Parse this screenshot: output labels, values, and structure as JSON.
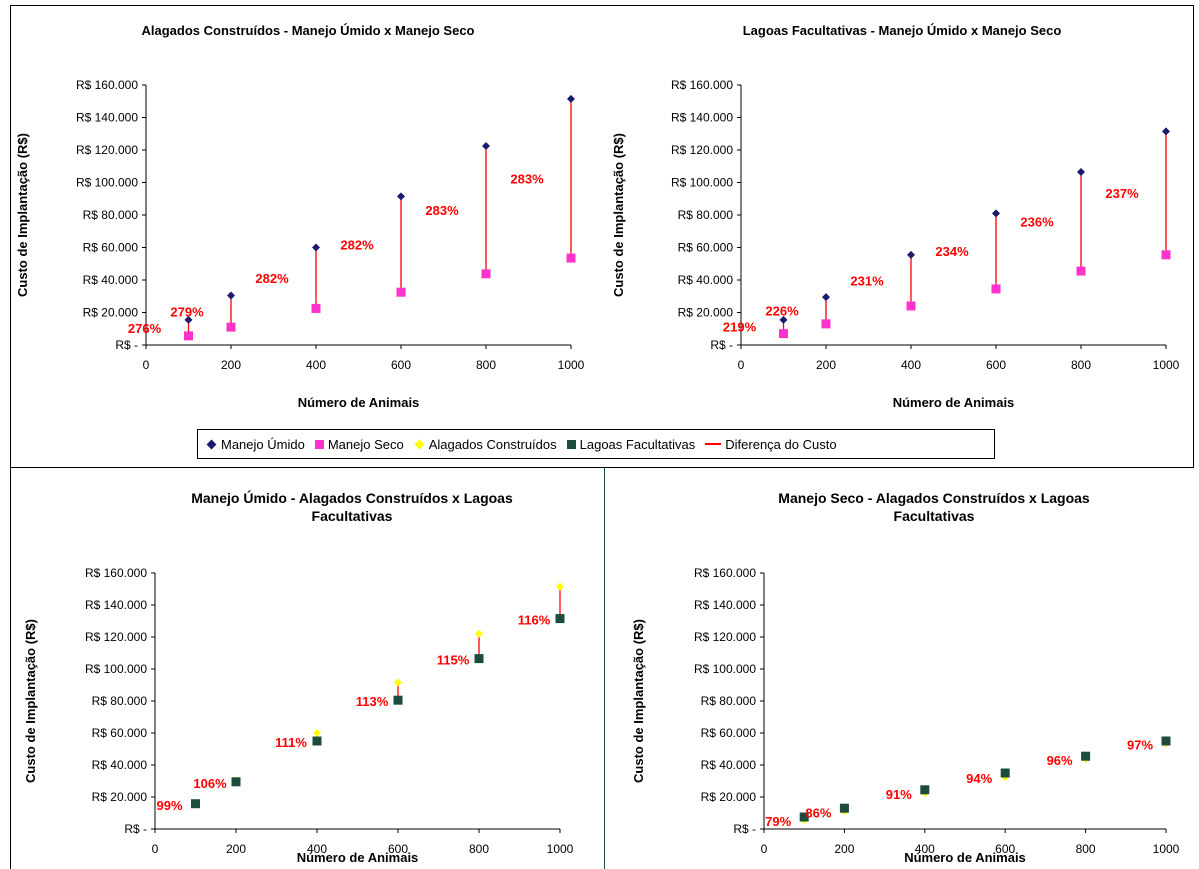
{
  "legend": {
    "items": [
      {
        "label": "Manejo Úmido",
        "icon": "navy-diamond-icon",
        "color": "#1a1a6e"
      },
      {
        "label": "Manejo Seco",
        "icon": "magenta-square-icon",
        "color": "#ff33cc"
      },
      {
        "label": "Alagados Construídos",
        "icon": "yellow-diamond-icon",
        "color": "#ffff00"
      },
      {
        "label": "Lagoas Facultativas",
        "icon": "green-square-icon",
        "color": "#1d4b3d"
      },
      {
        "label": "Diferença do Custo",
        "icon": "red-line-icon",
        "color": "#ff0000"
      }
    ]
  },
  "chart_data": [
    {
      "type": "scatter",
      "title": "Alagados Construídos - Manejo Úmido x Manejo Seco",
      "xlabel": "Número de Animais",
      "ylabel": "Custo de Implantação (R$)",
      "xlim": [
        0,
        1000
      ],
      "ylim": [
        0,
        160000
      ],
      "x_ticks": [
        "0",
        "200",
        "400",
        "600",
        "800",
        "1000"
      ],
      "y_ticks": [
        "R$ -",
        "R$ 20.000",
        "R$ 40.000",
        "R$ 60.000",
        "R$ 80.000",
        "R$ 100.000",
        "R$ 120.000",
        "R$ 140.000",
        "R$ 160.000"
      ],
      "x": [
        100,
        200,
        400,
        600,
        800,
        1000
      ],
      "series": [
        {
          "name": "Manejo Úmido",
          "marker": "diamond",
          "color": "#1a1a6e",
          "values": [
            15500,
            30500,
            60000,
            91500,
            122500,
            151500
          ]
        },
        {
          "name": "Manejo Seco",
          "marker": "square",
          "color": "#ff33cc",
          "values": [
            5600,
            11000,
            22500,
            32500,
            43800,
            53500
          ]
        }
      ],
      "annotations": [
        "276%",
        "279%",
        "282%",
        "282%",
        "283%",
        "283%"
      ]
    },
    {
      "type": "scatter",
      "title": "Lagoas Facultativas - Manejo Úmido x Manejo Seco",
      "xlabel": "Número de Animais",
      "ylabel": "Custo de Implantação (R$)",
      "xlim": [
        0,
        1000
      ],
      "ylim": [
        0,
        160000
      ],
      "x_ticks": [
        "0",
        "200",
        "400",
        "600",
        "800",
        "1000"
      ],
      "y_ticks": [
        "R$ -",
        "R$ 20.000",
        "R$ 40.000",
        "R$ 60.000",
        "R$ 80.000",
        "R$ 100.000",
        "R$ 120.000",
        "R$ 140.000",
        "R$ 160.000"
      ],
      "x": [
        100,
        200,
        400,
        600,
        800,
        1000
      ],
      "series": [
        {
          "name": "Manejo Úmido",
          "marker": "diamond",
          "color": "#1a1a6e",
          "values": [
            15500,
            29500,
            55500,
            81000,
            106500,
            131500
          ]
        },
        {
          "name": "Manejo Seco",
          "marker": "square",
          "color": "#ff33cc",
          "values": [
            7000,
            13000,
            24000,
            34500,
            45500,
            55500
          ]
        }
      ],
      "annotations": [
        "219%",
        "226%",
        "231%",
        "234%",
        "236%",
        "237%"
      ]
    },
    {
      "type": "scatter",
      "title": "Manejo Úmido - Alagados Construídos x Lagoas Facultativas",
      "xlabel": "Número de Animais",
      "ylabel": "Custo de Implantação (R$)",
      "xlim": [
        0,
        1000
      ],
      "ylim": [
        0,
        160000
      ],
      "x_ticks": [
        "0",
        "200",
        "400",
        "600",
        "800",
        "1000"
      ],
      "y_ticks": [
        "R$ -",
        "R$ 20.000",
        "R$ 40.000",
        "R$ 60.000",
        "R$ 80.000",
        "R$ 100.000",
        "R$ 120.000",
        "R$ 140.000",
        "R$ 160.000"
      ],
      "x": [
        100,
        200,
        400,
        600,
        800,
        1000
      ],
      "series": [
        {
          "name": "Alagados Construídos",
          "marker": "diamond",
          "color": "#ffff00",
          "values": [
            15500,
            30500,
            60000,
            91500,
            122000,
            151500
          ]
        },
        {
          "name": "Lagoas Facultativas",
          "marker": "square",
          "color": "#1d4b3d",
          "values": [
            15800,
            29500,
            55000,
            80500,
            106500,
            131500
          ]
        }
      ],
      "annotations": [
        "99%",
        "106%",
        "111%",
        "113%",
        "115%",
        "116%"
      ]
    },
    {
      "type": "scatter",
      "title": "Manejo Seco - Alagados Construídos x Lagoas Facultativas",
      "xlabel": "Número de Animais",
      "ylabel": "Custo de Implantação (R$)",
      "xlim": [
        0,
        1000
      ],
      "ylim": [
        0,
        160000
      ],
      "x_ticks": [
        "0",
        "200",
        "400",
        "600",
        "800",
        "1000"
      ],
      "y_ticks": [
        "R$ -",
        "R$ 20.000",
        "R$ 40.000",
        "R$ 60.000",
        "R$ 80.000",
        "R$ 100.000",
        "R$ 120.000",
        "R$ 140.000",
        "R$ 160.000"
      ],
      "x": [
        100,
        200,
        400,
        600,
        800,
        1000
      ],
      "series": [
        {
          "name": "Alagados Construídos",
          "marker": "diamond",
          "color": "#ffff00",
          "values": [
            5600,
            11000,
            22500,
            32500,
            43800,
            53500
          ]
        },
        {
          "name": "Lagoas Facultativas",
          "marker": "square",
          "color": "#1d4b3d",
          "values": [
            7500,
            13000,
            24500,
            35000,
            45500,
            55000
          ]
        }
      ],
      "annotations": [
        "79%",
        "86%",
        "91%",
        "94%",
        "96%",
        "97%"
      ]
    }
  ]
}
